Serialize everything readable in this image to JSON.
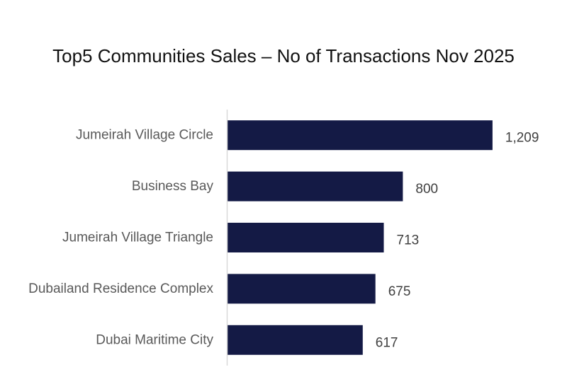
{
  "chart_data": {
    "type": "bar",
    "orientation": "horizontal",
    "title": "Top5 Communities Sales – No of Transactions Nov 2025",
    "categories": [
      "Jumeirah Village Circle",
      "Business Bay",
      "Jumeirah Village Triangle",
      "Dubailand Residence Complex",
      "Dubai Maritime City"
    ],
    "values": [
      1209,
      800,
      713,
      675,
      617
    ],
    "value_labels": [
      "1,209",
      "800",
      "713",
      "675",
      "617"
    ],
    "xlim": [
      0,
      1300
    ],
    "grid": false,
    "legend": "none",
    "bar_color": "#141a45",
    "axis_color": "#d9d9d9"
  }
}
